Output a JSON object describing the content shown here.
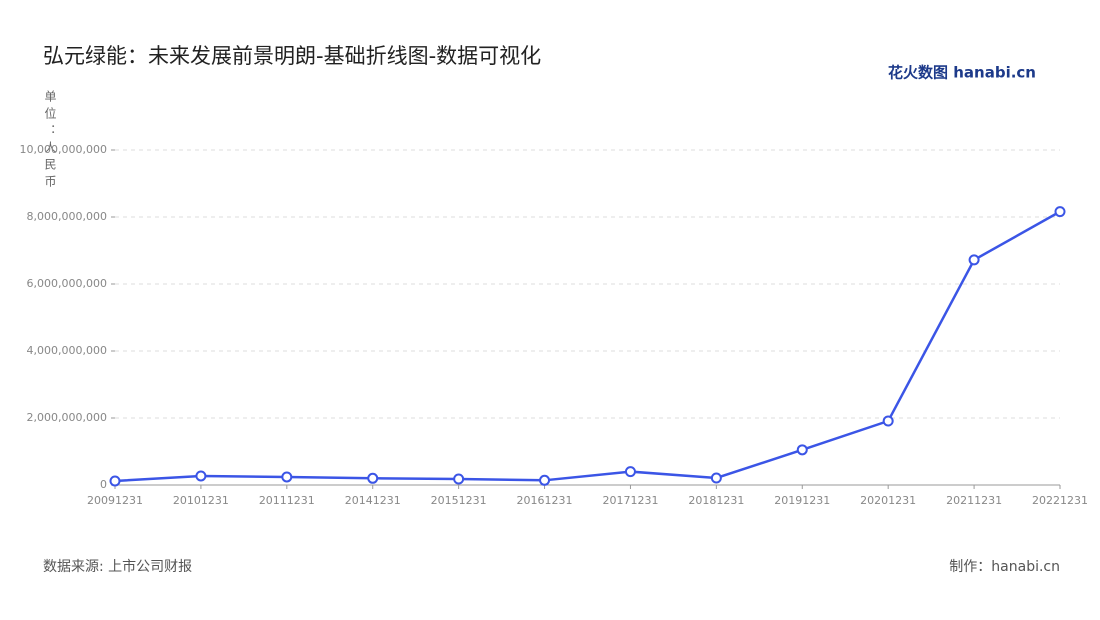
{
  "chart_data": {
    "type": "line",
    "title": "弘元绿能：未来发展前景明朗-基础折线图-数据可视化",
    "y_axis_label": "单位：人民币",
    "logo": "花火数图 hanabi.cn",
    "source": "数据来源: 上市公司财报",
    "credit": "制作：hanabi.cn",
    "categories": [
      "20091231",
      "20101231",
      "20111231",
      "20141231",
      "20151231",
      "20161231",
      "20171231",
      "20181231",
      "20191231",
      "20201231",
      "20211231",
      "20221231"
    ],
    "values": [
      120000000,
      270000000,
      240000000,
      200000000,
      180000000,
      140000000,
      400000000,
      210000000,
      1050000000,
      1910000000,
      6720000000,
      8160000000
    ],
    "color": "#3b55e6",
    "ylim": [
      0,
      10000000000
    ],
    "yticks": [
      0,
      {
        "value": 2000000000,
        "label": "2,000,000,000"
      },
      {
        "value": 4000000000,
        "label": "4,000,000,000"
      },
      {
        "value": 6000000000,
        "label": "6,000,000,000"
      },
      {
        "value": 8000000000,
        "label": "8,000,000,000"
      },
      {
        "value": 10000000000,
        "label": "10,000,000,000"
      }
    ],
    "grid": true
  }
}
